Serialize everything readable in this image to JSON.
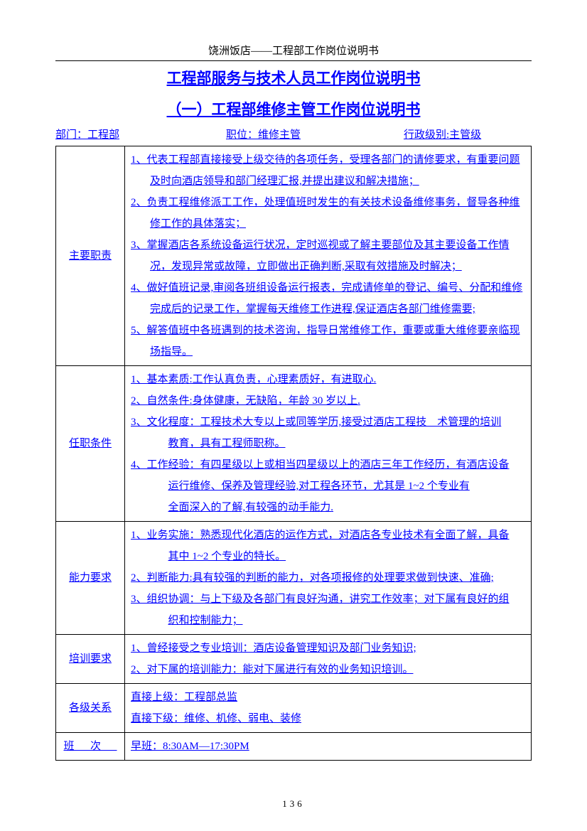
{
  "header": "饶洲饭店——工程部工作岗位说明书",
  "title1": "工程部服务与技术人员工作岗位说明书",
  "title2": "（一）工程部维修主管工作岗位说明书",
  "info": {
    "dept_label": "部门：",
    "dept_value": "工程部",
    "pos_label": "职位：",
    "pos_value": "维修主管",
    "rank_label": "行政级别:",
    "rank_value": "主管级"
  },
  "sections": {
    "duties": {
      "label": "主要职责",
      "items": [
        "1、代表工程部直接接受上级交待的各项任务，受理各部门的请修要求，有重要问题及时向酒店领导和部门经理汇报,并提出建议和解决措施；",
        "2、负责工程维修派工工作，处理值班时发生的有关技术设备维修事务，督导各种维修工作的具体落实；",
        "3、掌握酒店各系统设备运行状况，定时巡视或了解主要部位及其主要设备工作情况，发现异常或故障，立即做出正确判断,采取有效措施及时解决；",
        "4、做好值班记录,审阅各班组设备运行报表，完成请修单的登记、编号、分配和维修完成后的记录工作，掌握每天维修工作进程,保证酒店各部门维修需要;",
        "5、解答值班中各班遇到的技术咨询，指导日常维修工作，重要或重大维修要亲临现场指导。"
      ]
    },
    "qualifications": {
      "label": "任职条件",
      "items": [
        "1、基本素质:工作认真负责，心理素质好，有进取心.",
        "2、自然条件:身体健康，无缺陷，年龄 30 岁以上.",
        "3、文化程度：工程技术大专以上或同等学历,接受过酒店工程技　术管理的培训",
        "4、工作经验：有四星级以上或相当四星级以上的酒店三年工作经历，有酒店设备"
      ],
      "sub3": "教育，具有工程师职称。",
      "sub4a": "运行维修、保养及管理经验,对工程各环节，尤其是 1~2 个专业有",
      "sub4b": "全面深入的了解,有较强的动手能力."
    },
    "abilities": {
      "label": "能力要求",
      "items": [
        "1、业务实施：熟悉现代化酒店的运作方式，对酒店各专业技术有全面了解，具备",
        "2、判断能力:具有较强的判断的能力，对各项报修的处理要求做到快速、准确;",
        "3、组织协调：与上下级及各部门有良好沟通，讲究工作效率；对下属有良好的组"
      ],
      "sub1": "其中 1~2 个专业的特长。",
      "sub3": "织和控制能力；"
    },
    "training": {
      "label": "培训要求",
      "items": [
        "1、曾经接受之专业培训：酒店设备管理知识及部门业务知识;",
        "2、对下属的培训能力：能对下属进行有效的业务知识培训。"
      ]
    },
    "relations": {
      "label": "各级关系",
      "lines": [
        "直接上级：工程部总监",
        "直接下级：维修、机修、弱电、装修"
      ]
    },
    "shift": {
      "label": "班次",
      "value": "早班：8:30AM—17:30PM"
    }
  },
  "page_number": "136"
}
